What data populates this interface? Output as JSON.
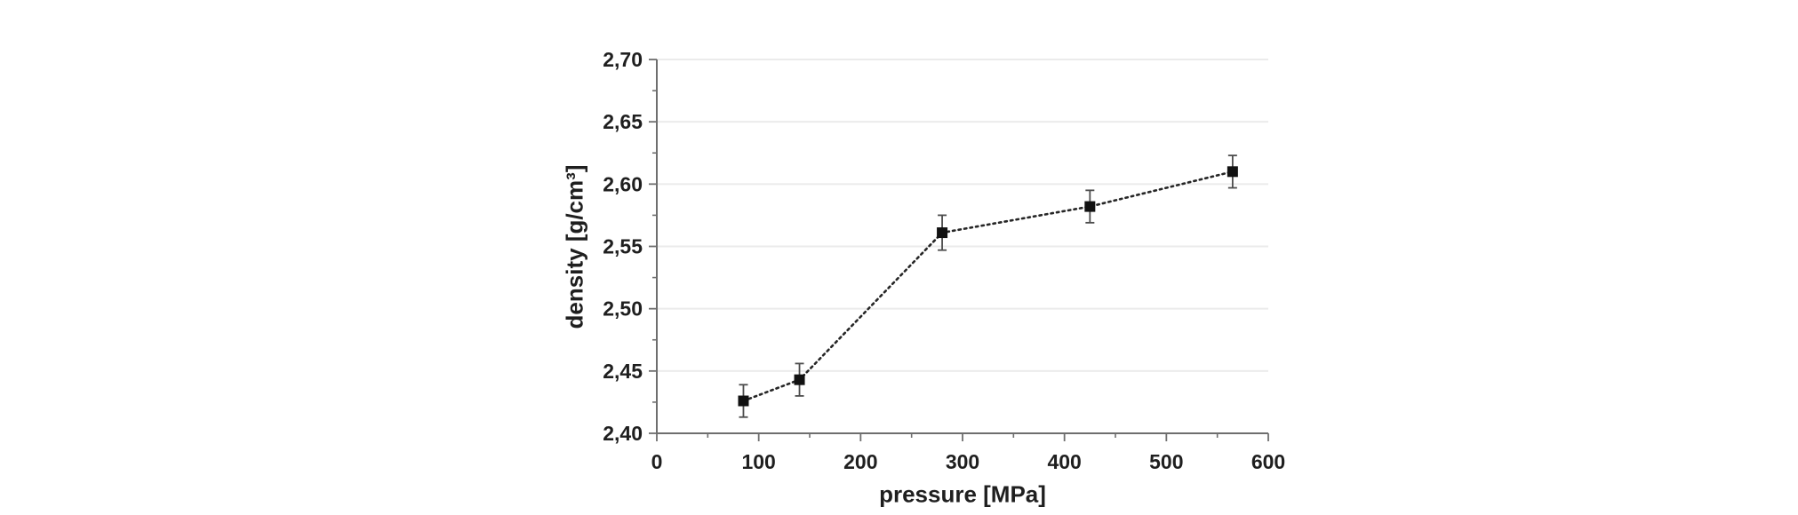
{
  "figure": {
    "background": "#ffffff",
    "description": "scatter-line chart of compact density versus compaction pressure with vertical error bars"
  },
  "chart_data": {
    "type": "scatter",
    "title": "",
    "xlabel": "pressure [MPa]",
    "ylabel": "density [g/cm³]",
    "xlim": [
      0,
      600
    ],
    "ylim": [
      2.4,
      2.7
    ],
    "grid": "horizontal-only",
    "legend": "none",
    "decimal_separator": ",",
    "x_major_ticks": [
      0,
      100,
      200,
      300,
      400,
      500,
      600
    ],
    "x_tick_labels": [
      "0",
      "100",
      "200",
      "300",
      "400",
      "500",
      "600"
    ],
    "x_minor_step": 50,
    "y_major_ticks": [
      2.4,
      2.45,
      2.5,
      2.55,
      2.6,
      2.65,
      2.7
    ],
    "y_tick_labels": [
      "2,40",
      "2,45",
      "2,50",
      "2,55",
      "2,60",
      "2,65",
      "2,70"
    ],
    "y_minor_step": 0.025,
    "series": [
      {
        "name": "density",
        "x": [
          85,
          140,
          280,
          425,
          565
        ],
        "y": [
          2.426,
          2.443,
          2.561,
          2.582,
          2.61
        ],
        "y_err": [
          0.013,
          0.013,
          0.014,
          0.013,
          0.013
        ],
        "marker": "filled-square",
        "line_style": "dotted"
      }
    ],
    "colors": {
      "marker": "#111111",
      "line": "#262626",
      "error_bar": "#4d4d4d",
      "grid": "#ebebeb",
      "axis": "#6e6e6e",
      "text": "#1f1f1f",
      "background": "#ffffff"
    }
  }
}
